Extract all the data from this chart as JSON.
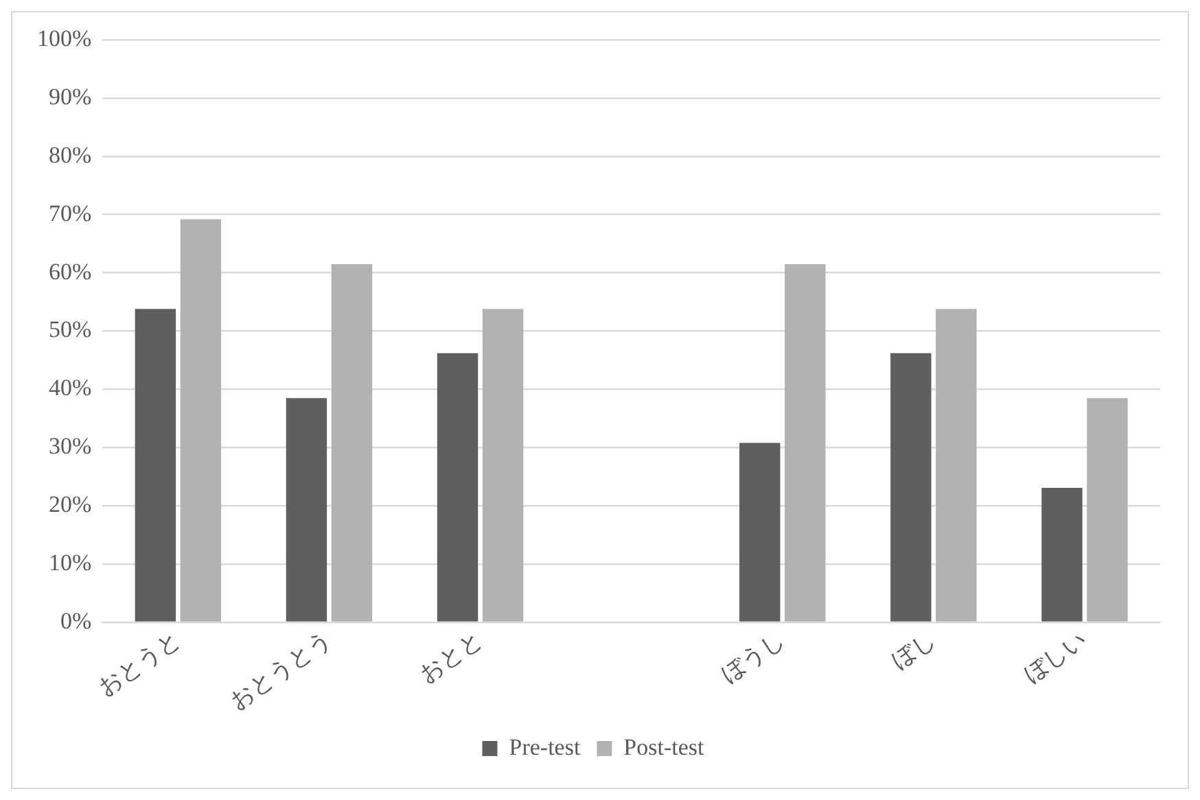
{
  "chart_data": {
    "type": "bar",
    "categories": [
      "おとうと",
      "おとうとう",
      "おとと",
      null,
      "ぼうし",
      "ぼし",
      "ぼしい"
    ],
    "series": [
      {
        "name": "Pre-test",
        "color": "#5f5f5f",
        "values": [
          53.8,
          38.5,
          46.2,
          null,
          30.8,
          46.2,
          23.1
        ]
      },
      {
        "name": "Post-test",
        "color": "#b2b2b2",
        "values": [
          69.2,
          61.5,
          53.8,
          null,
          61.5,
          53.8,
          38.5
        ]
      }
    ],
    "ylim": [
      0,
      100
    ],
    "yticks": [
      {
        "value": 0,
        "label": "0%"
      },
      {
        "value": 10,
        "label": "10%"
      },
      {
        "value": 20,
        "label": "20%"
      },
      {
        "value": 30,
        "label": "30%"
      },
      {
        "value": 40,
        "label": "40%"
      },
      {
        "value": 50,
        "label": "50%"
      },
      {
        "value": 60,
        "label": "60%"
      },
      {
        "value": 70,
        "label": "70%"
      },
      {
        "value": 80,
        "label": "80%"
      },
      {
        "value": 90,
        "label": "90%"
      },
      {
        "value": 100,
        "label": "100%"
      }
    ],
    "grid": "y",
    "legend": "bottom"
  }
}
